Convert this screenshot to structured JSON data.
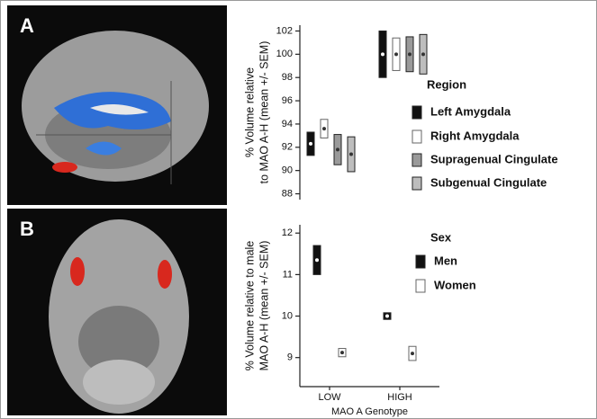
{
  "panel_labels": [
    "A",
    "B"
  ],
  "chart_data": [
    {
      "type": "errorbar",
      "ylabel": [
        "% Volume relative",
        "to MAO A-H (mean +/- SEM)"
      ],
      "legend_title": "Region",
      "ylim": [
        87.5,
        102.5
      ],
      "yticks": [
        88,
        90,
        92,
        94,
        96,
        98,
        100,
        102
      ],
      "series": [
        {
          "name": "Left Amygdala",
          "color": "#111111",
          "values": [
            92.3,
            100
          ],
          "errors": [
            1.0,
            2.0
          ]
        },
        {
          "name": "Right Amygdala",
          "color": "#ffffff",
          "values": [
            93.6,
            100
          ],
          "errors": [
            0.8,
            1.4
          ]
        },
        {
          "name": "Supragenual Cingulate",
          "color": "#9a9a9a",
          "values": [
            91.8,
            100
          ],
          "errors": [
            1.3,
            1.5
          ]
        },
        {
          "name": "Subgenual Cingulate",
          "color": "#bdbdbd",
          "values": [
            91.4,
            100
          ],
          "errors": [
            1.5,
            1.7
          ]
        }
      ]
    },
    {
      "type": "errorbar",
      "ylabel": [
        "% Volume relative to male",
        "MAO A-H (mean +/- SEM)"
      ],
      "xlabel": "MAO A Genotype",
      "categories": [
        "LOW",
        "HIGH"
      ],
      "legend_title": "Sex",
      "ylim": [
        8.3,
        12.2
      ],
      "yticks": [
        9,
        10,
        11,
        12
      ],
      "series": [
        {
          "name": "Men",
          "color": "#111111",
          "values": [
            11.35,
            10.0
          ],
          "errors": [
            0.35,
            0.08
          ]
        },
        {
          "name": "Women",
          "color": "#ffffff",
          "values": [
            9.12,
            9.1
          ],
          "errors": [
            0.1,
            0.17
          ]
        }
      ]
    }
  ]
}
